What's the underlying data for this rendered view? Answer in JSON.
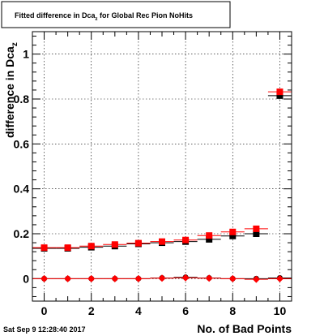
{
  "timestamp": "Sat Sep  9 12:28:40 2017",
  "chart_data": {
    "type": "scatter",
    "title": "Fitted difference in Dca",
    "title_sub": "z",
    "title_suffix": " for Global Rec Pion NoHits",
    "xlabel": "No. of Bad Points",
    "ylabel": "difference in Dca",
    "ylabel_sub": "z",
    "xlim": [
      -0.5,
      10.5
    ],
    "ylim": [
      -0.1,
      1.1
    ],
    "xticks": [
      0,
      2,
      4,
      6,
      8,
      10
    ],
    "xtick_labels": [
      "0",
      "2",
      "4",
      "6",
      "8",
      "10"
    ],
    "yticks": [
      0,
      0.2,
      0.4,
      0.6,
      0.8,
      1
    ],
    "ytick_labels": [
      "0",
      "0.2",
      "0.4",
      "0.6",
      "0.8",
      "1"
    ],
    "grid": true,
    "legend": "none",
    "series": [
      {
        "marker": "square",
        "color": "#000000",
        "x": [
          0,
          1,
          2,
          3,
          4,
          5,
          6,
          7,
          8,
          9,
          10
        ],
        "y": [
          0.135,
          0.135,
          0.14,
          0.145,
          0.155,
          0.16,
          0.165,
          0.175,
          0.19,
          0.2,
          0.815
        ]
      },
      {
        "marker": "square",
        "color": "#ff0000",
        "x": [
          0,
          1,
          2,
          3,
          4,
          5,
          6,
          7,
          8,
          9,
          10
        ],
        "y": [
          0.138,
          0.138,
          0.145,
          0.152,
          0.158,
          0.165,
          0.172,
          0.192,
          0.208,
          0.222,
          0.832
        ]
      },
      {
        "marker": "circle",
        "color": "#000000",
        "x": [
          0,
          1,
          2,
          3,
          4,
          5,
          6,
          7,
          8,
          9,
          10
        ],
        "y": [
          0.0,
          0.0,
          0.0,
          0.0,
          0.0,
          0.003,
          0.006,
          0.003,
          0.0,
          0.0,
          0.003
        ]
      },
      {
        "marker": "diamond",
        "color": "#ff0000",
        "x": [
          0,
          1,
          2,
          3,
          4,
          5,
          6,
          7,
          8,
          9,
          10
        ],
        "y": [
          0.0,
          0.0,
          0.0,
          0.0,
          0.0,
          0.002,
          0.004,
          0.002,
          0.0,
          -0.003,
          0.0
        ]
      }
    ]
  }
}
